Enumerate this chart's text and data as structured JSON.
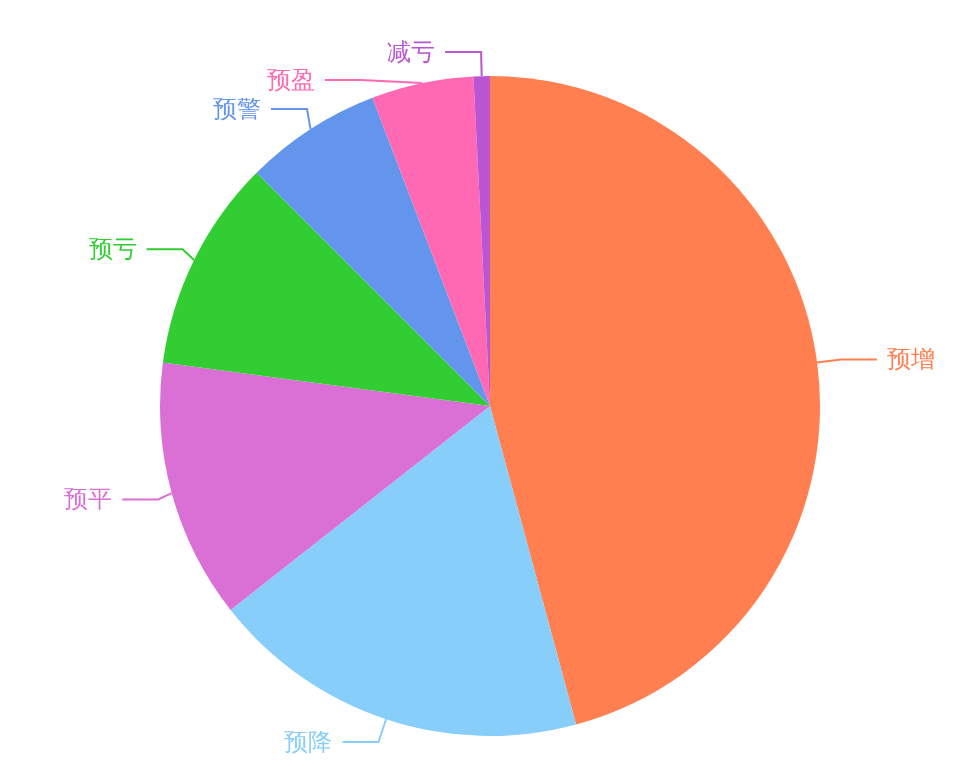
{
  "chart_data": {
    "type": "pie",
    "categories": [
      "预增",
      "预降",
      "预平",
      "预亏",
      "预警",
      "预盈",
      "减亏"
    ],
    "values": [
      45.8,
      18.6,
      12.7,
      10.4,
      6.7,
      5.0,
      0.8
    ],
    "colors": [
      "#ff7f50",
      "#87cefa",
      "#da70d6",
      "#32cd32",
      "#6495ed",
      "#ff69b4",
      "#ba55d3"
    ],
    "legend": false
  }
}
